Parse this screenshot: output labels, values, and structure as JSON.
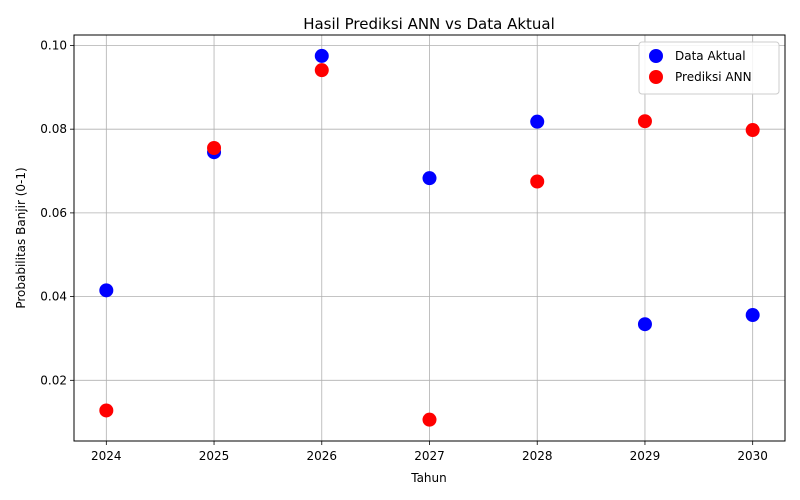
{
  "chart_data": {
    "type": "scatter",
    "title": "Hasil Prediksi ANN vs Data Aktual",
    "xlabel": "Tahun",
    "ylabel": "Probabilitas Banjir (0-1)",
    "x": [
      2024,
      2025,
      2026,
      2027,
      2028,
      2029,
      2030
    ],
    "xticks": [
      "2024",
      "2025",
      "2026",
      "2027",
      "2028",
      "2029",
      "2030"
    ],
    "yticks": [
      "0.02",
      "0.04",
      "0.06",
      "0.08",
      "0.10"
    ],
    "xlim": [
      2023.7,
      2030.3
    ],
    "ylim": [
      0.0055,
      0.1025
    ],
    "grid": true,
    "legend_position": "top-right",
    "series": [
      {
        "name": "Data Aktual",
        "color": "#0000ff",
        "values": [
          0.0415,
          0.0745,
          0.0975,
          0.0683,
          0.0818,
          0.0334,
          0.0356
        ]
      },
      {
        "name": "Prediksi ANN",
        "color": "#ff0000",
        "values": [
          0.0128,
          0.0755,
          0.0941,
          0.0106,
          0.0675,
          0.0819,
          0.0798
        ]
      }
    ]
  }
}
